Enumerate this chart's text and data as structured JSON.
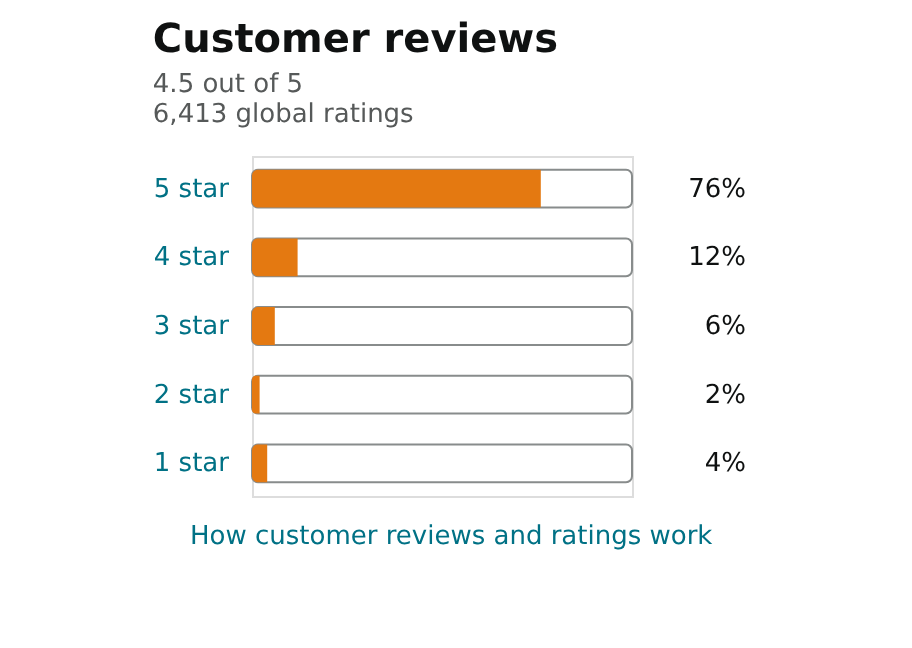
{
  "chart_data": {
    "type": "bar",
    "orientation": "horizontal",
    "title": "Customer reviews",
    "annotations": [
      "4.5 out of 5",
      "6,413 global ratings",
      "How customer reviews and ratings work"
    ],
    "categories": [
      "5 star",
      "4 star",
      "3 star",
      "2 star",
      "1 star"
    ],
    "values": [
      76,
      12,
      6,
      2,
      4
    ],
    "color": "#e47911",
    "value_labels": [
      "76%",
      "12%",
      "6%",
      "2%",
      "4%"
    ],
    "xlim": [
      0,
      100
    ],
    "tick_labels": "y",
    "grid": false
  }
}
